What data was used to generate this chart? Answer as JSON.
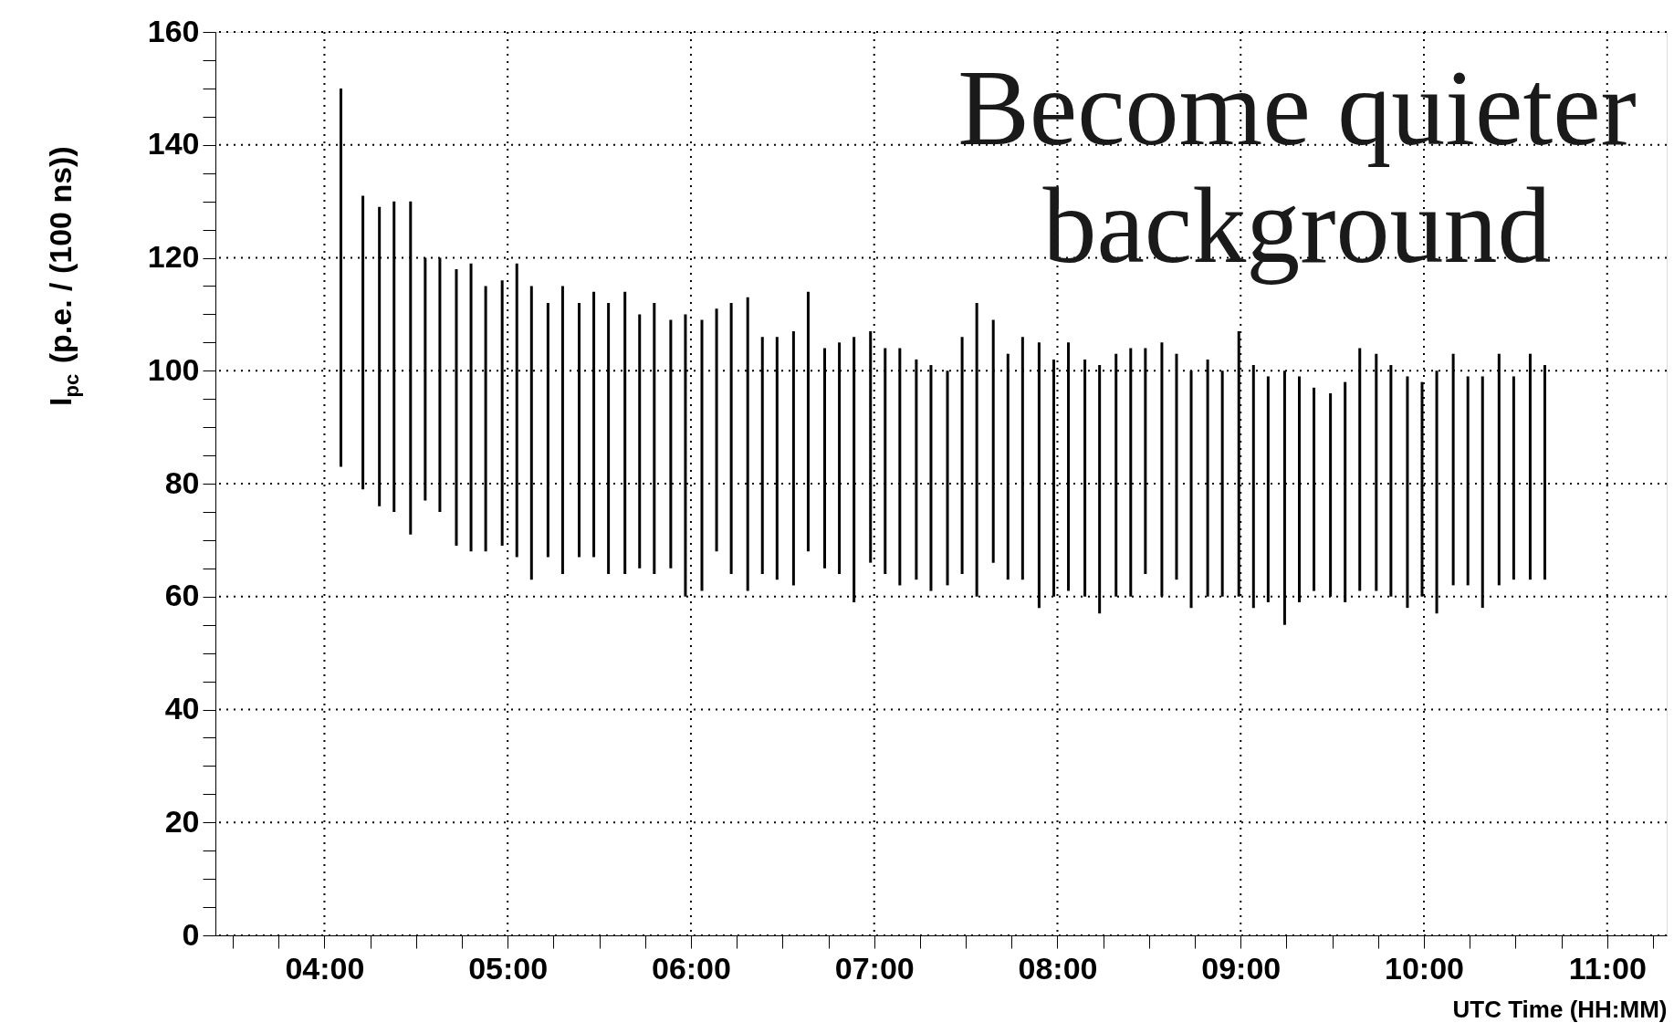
{
  "chart_data": {
    "type": "bar",
    "xlabel": "UTC Time (HH:MM)",
    "ylabel": "I$_{pc}$ (p.e. / (100 ns))",
    "annotations": [
      "Become quieter\nbackground"
    ],
    "x": [
      4.09,
      4.21,
      4.3,
      4.38,
      4.47,
      4.55,
      4.63,
      4.72,
      4.8,
      4.88,
      4.97,
      5.05,
      5.13,
      5.22,
      5.3,
      5.39,
      5.47,
      5.55,
      5.64,
      5.72,
      5.8,
      5.89,
      5.97,
      6.06,
      6.14,
      6.22,
      6.31,
      6.39,
      6.47,
      6.56,
      6.64,
      6.73,
      6.81,
      6.89,
      6.98,
      7.06,
      7.14,
      7.23,
      7.31,
      7.4,
      7.48,
      7.56,
      7.65,
      7.73,
      7.81,
      7.9,
      7.98,
      8.06,
      8.15,
      8.23,
      8.32,
      8.4,
      8.48,
      8.57,
      8.65,
      8.73,
      8.82,
      8.9,
      8.99,
      9.07,
      9.15,
      9.24,
      9.32,
      9.4,
      9.49,
      9.57,
      9.65,
      9.74,
      9.82,
      9.91,
      9.99,
      10.07,
      10.16,
      10.24,
      10.32,
      10.41,
      10.49,
      10.58,
      10.66
    ],
    "series": [
      {
        "color": "#000000",
        "base": [
          83,
          79,
          76,
          75,
          71,
          77,
          75,
          69,
          68,
          68,
          69,
          67,
          63,
          67,
          64,
          67,
          67,
          64,
          64,
          65,
          64,
          65,
          60,
          61,
          68,
          64,
          61,
          64,
          63,
          62,
          68,
          65,
          64,
          59,
          66,
          64,
          62,
          63,
          61,
          62,
          64,
          60,
          66,
          63,
          63,
          58,
          60,
          61,
          60,
          57,
          60,
          60,
          64,
          60,
          63,
          58,
          60,
          60,
          60,
          58,
          59,
          55,
          59,
          61,
          60,
          59,
          61,
          61,
          60,
          58,
          60,
          57,
          62,
          62,
          58,
          62,
          63,
          63,
          63
        ],
        "values": [
          67,
          52,
          53,
          55,
          59,
          43,
          45,
          49,
          51,
          47,
          47,
          52,
          52,
          45,
          51,
          45,
          47,
          48,
          50,
          45,
          48,
          44,
          50,
          48,
          43,
          48,
          52,
          42,
          43,
          45,
          46,
          39,
          41,
          47,
          41,
          40,
          42,
          39,
          40,
          38,
          42,
          52,
          43,
          40,
          43,
          47,
          42,
          44,
          42,
          44,
          43,
          44,
          40,
          45,
          40,
          42,
          42,
          40,
          47,
          43,
          40,
          45,
          40,
          36,
          36,
          39,
          43,
          42,
          41,
          41,
          38,
          43,
          41,
          37,
          41,
          41,
          36,
          40,
          38
        ]
      }
    ],
    "xlim": [
      3.43,
      11.3
    ],
    "xticks": [
      {
        "value": 3.5,
        "label": null
      },
      {
        "value": 3.75,
        "label": null
      },
      {
        "value": 4,
        "label": "04:00"
      },
      {
        "value": 4.25,
        "label": null
      },
      {
        "value": 4.5,
        "label": null
      },
      {
        "value": 4.75,
        "label": null
      },
      {
        "value": 5,
        "label": "05:00"
      },
      {
        "value": 5.25,
        "label": null
      },
      {
        "value": 5.5,
        "label": null
      },
      {
        "value": 5.75,
        "label": null
      },
      {
        "value": 6,
        "label": "06:00"
      },
      {
        "value": 6.25,
        "label": null
      },
      {
        "value": 6.5,
        "label": null
      },
      {
        "value": 6.75,
        "label": null
      },
      {
        "value": 7,
        "label": "07:00"
      },
      {
        "value": 7.25,
        "label": null
      },
      {
        "value": 7.5,
        "label": null
      },
      {
        "value": 7.75,
        "label": null
      },
      {
        "value": 8,
        "label": "08:00"
      },
      {
        "value": 8.25,
        "label": null
      },
      {
        "value": 8.5,
        "label": null
      },
      {
        "value": 8.75,
        "label": null
      },
      {
        "value": 9,
        "label": "09:00"
      },
      {
        "value": 9.25,
        "label": null
      },
      {
        "value": 9.5,
        "label": null
      },
      {
        "value": 9.75,
        "label": null
      },
      {
        "value": 10,
        "label": "10:00"
      },
      {
        "value": 10.25,
        "label": null
      },
      {
        "value": 10.5,
        "label": null
      },
      {
        "value": 10.75,
        "label": null
      },
      {
        "value": 11,
        "label": "11:00"
      },
      {
        "value": 11.25,
        "label": null
      }
    ],
    "ylim": [
      0,
      160
    ],
    "yticks": [
      0,
      {
        "value": 5,
        "label": null
      },
      {
        "value": 10,
        "label": null
      },
      {
        "value": 15,
        "label": null
      },
      20,
      {
        "value": 25,
        "label": null
      },
      {
        "value": 30,
        "label": null
      },
      {
        "value": 35,
        "label": null
      },
      40,
      {
        "value": 45,
        "label": null
      },
      {
        "value": 50,
        "label": null
      },
      {
        "value": 55,
        "label": null
      },
      60,
      {
        "value": 65,
        "label": null
      },
      {
        "value": 70,
        "label": null
      },
      {
        "value": 75,
        "label": null
      },
      80,
      {
        "value": 85,
        "label": null
      },
      {
        "value": 90,
        "label": null
      },
      {
        "value": 95,
        "label": null
      },
      100,
      {
        "value": 105,
        "label": null
      },
      {
        "value": 110,
        "label": null
      },
      {
        "value": 115,
        "label": null
      },
      120,
      {
        "value": 125,
        "label": null
      },
      {
        "value": 130,
        "label": null
      },
      {
        "value": 135,
        "label": null
      },
      140,
      {
        "value": 145,
        "label": null
      },
      {
        "value": 150,
        "label": null
      },
      {
        "value": 155,
        "label": null
      },
      160
    ],
    "grid": true
  }
}
